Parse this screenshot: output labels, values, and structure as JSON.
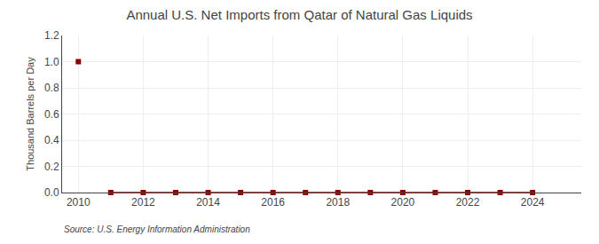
{
  "chart_data": {
    "type": "scatter",
    "title": "Annual U.S. Net Imports from Qatar of Natural Gas Liquids",
    "y_label": "Thousand Barrels per Day",
    "annotations": [
      "Source: U.S. Energy Information Administration"
    ],
    "x": [
      2010,
      2011,
      2012,
      2013,
      2014,
      2015,
      2016,
      2017,
      2018,
      2019,
      2020,
      2021,
      2022,
      2023,
      2024
    ],
    "series": [
      {
        "type": "scatter",
        "color": "#8b0000",
        "marker": "square",
        "values": [
          1.0,
          0.0,
          0.0,
          0.0,
          0.0,
          0.0,
          0.0,
          0.0,
          0.0,
          0.0,
          0.0,
          0.0,
          0.0,
          0.0,
          0.0
        ]
      },
      {
        "type": "line",
        "color": "#8b0000",
        "line_style": "solid",
        "values": [
          null,
          0.0,
          0.0,
          0.0,
          0.0,
          0.0,
          0.0,
          0.0,
          0.0,
          0.0,
          0.0,
          0.0,
          0.0,
          0.0,
          0.0
        ]
      }
    ],
    "xlim": [
      2009.5,
      2025.5
    ],
    "xticks": [
      2010,
      2012,
      2014,
      2016,
      2018,
      2020,
      2022,
      2024
    ],
    "ylim": [
      0.0,
      1.2
    ],
    "yticks": [
      {
        "value": 0.0,
        "label": "0.0"
      },
      0.2,
      0.4,
      0.6,
      0.8,
      {
        "value": 1.0,
        "label": "1.0"
      },
      1.2
    ],
    "grid": true
  }
}
